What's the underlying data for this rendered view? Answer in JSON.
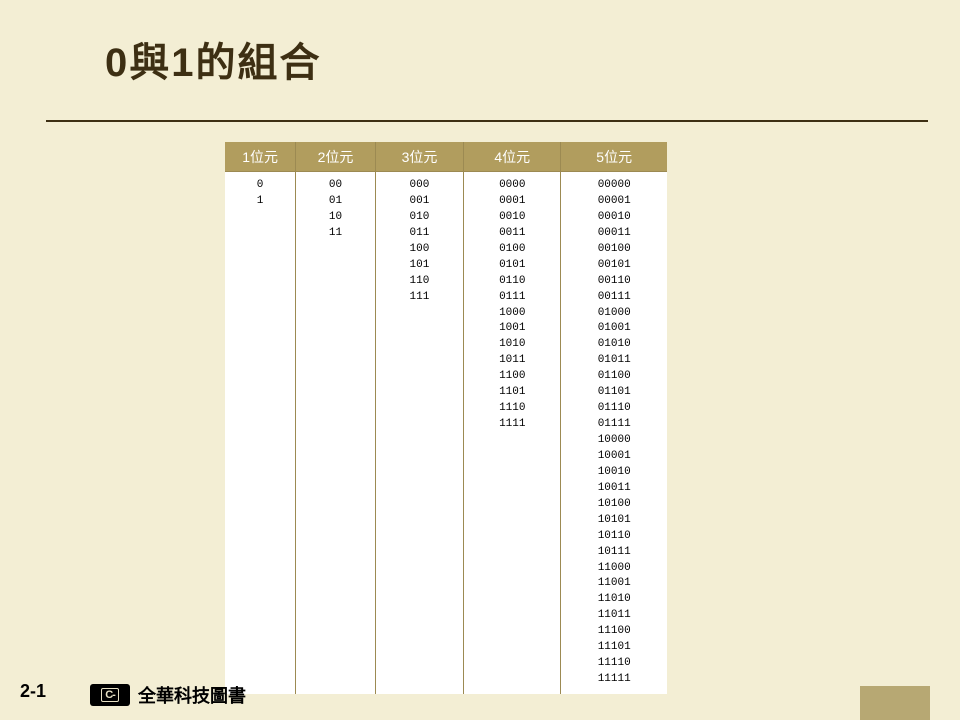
{
  "colors": {
    "slide_bg": "#f3eed4",
    "title_text": "#3d2f13",
    "rule": "#3d2f13",
    "table_header_bg": "#b19d5e",
    "table_header_text": "#ffffff",
    "table_body_bg": "#ffffff",
    "table_border": "#9c8a52",
    "table_value_text": "#000000",
    "page_num_text": "#000000",
    "publisher_text": "#000000",
    "publisher_logo_bg": "#000000",
    "deco_block": "#b7a873"
  },
  "title": "0與1的組合",
  "table": {
    "headers": [
      "1位元",
      "2位元",
      "3位元",
      "4位元",
      "5位元"
    ],
    "col_widths_pct": [
      16,
      18,
      20,
      22,
      24
    ],
    "header_fontsize": 14,
    "value_fontsize": 11,
    "columns": [
      [
        "0",
        "1"
      ],
      [
        "00",
        "01",
        "10",
        "11"
      ],
      [
        "000",
        "001",
        "010",
        "011",
        "100",
        "101",
        "110",
        "111"
      ],
      [
        "0000",
        "0001",
        "0010",
        "0011",
        "0100",
        "0101",
        "0110",
        "0111",
        "1000",
        "1001",
        "1010",
        "1011",
        "1100",
        "1101",
        "1110",
        "1111"
      ],
      [
        "00000",
        "00001",
        "00010",
        "00011",
        "00100",
        "00101",
        "00110",
        "00111",
        "01000",
        "01001",
        "01010",
        "01011",
        "01100",
        "01101",
        "01110",
        "01111",
        "10000",
        "10001",
        "10010",
        "10011",
        "10100",
        "10101",
        "10110",
        "10111",
        "11000",
        "11001",
        "11010",
        "11011",
        "11100",
        "11101",
        "11110",
        "11111"
      ]
    ]
  },
  "footer": {
    "page_number": "2-1",
    "publisher_logo_text": "C-",
    "publisher_name": "全華科技圖書"
  }
}
